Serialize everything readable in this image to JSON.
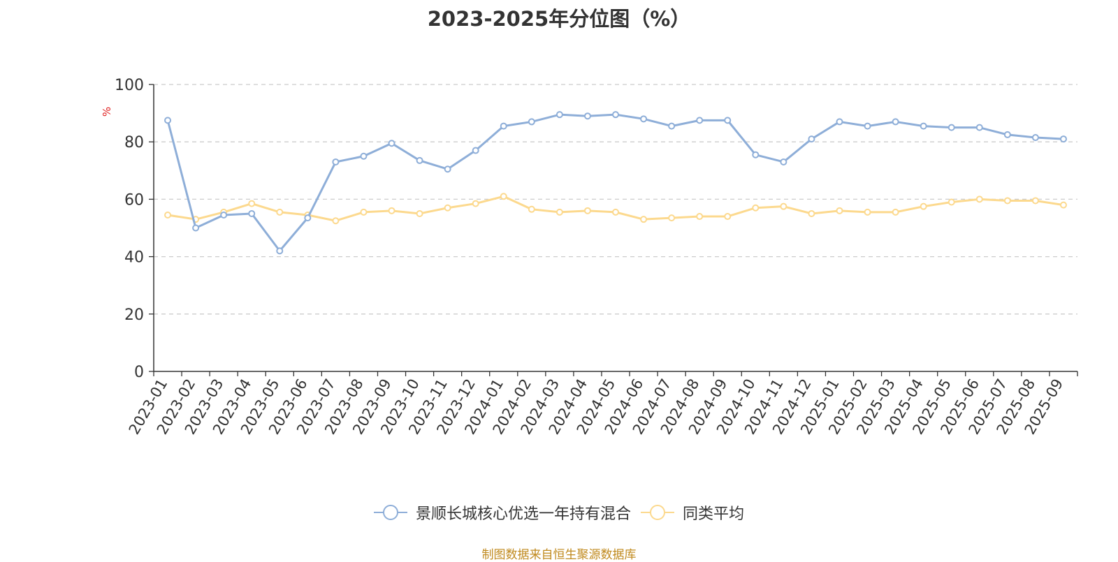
{
  "chart_data": {
    "type": "line",
    "title": "2023-2025年分位图（%）",
    "ylabel": "%",
    "xlabel": "",
    "ylim": [
      0,
      100
    ],
    "yticks": [
      0,
      20,
      40,
      60,
      80,
      100
    ],
    "grid": true,
    "legend_position": "bottom",
    "categories": [
      "2023-01",
      "2023-02",
      "2023-03",
      "2023-04",
      "2023-05",
      "2023-06",
      "2023-07",
      "2023-08",
      "2023-09",
      "2023-10",
      "2023-11",
      "2023-12",
      "2024-01",
      "2024-02",
      "2024-03",
      "2024-04",
      "2024-05",
      "2024-06",
      "2024-07",
      "2024-08",
      "2024-09",
      "2024-10",
      "2024-11",
      "2024-12",
      "2025-01",
      "2025-02",
      "2025-03",
      "2025-04",
      "2025-05",
      "2025-06",
      "2025-07",
      "2025-08",
      "2025-09"
    ],
    "series": [
      {
        "name": "景顺长城核心优选一年持有混合",
        "color": "#8eaed8",
        "values": [
          87.5,
          50,
          54.5,
          55,
          42,
          53.5,
          73,
          75,
          79.5,
          73.5,
          70.5,
          77,
          85.5,
          87,
          89.5,
          89,
          89.5,
          88,
          85.5,
          87.5,
          87.5,
          75.5,
          73,
          81,
          87,
          85.5,
          87,
          85.5,
          85,
          85,
          82.5,
          81.5,
          81
        ]
      },
      {
        "name": "同类平均",
        "color": "#fcd98e",
        "values": [
          54.5,
          53,
          55.5,
          58.5,
          55.5,
          54.5,
          52.5,
          55.5,
          56,
          55,
          57,
          58.5,
          61,
          56.5,
          55.5,
          56,
          55.5,
          53,
          53.5,
          54,
          54,
          57,
          57.5,
          55,
          56,
          55.5,
          55.5,
          57.5,
          59,
          60,
          59.5,
          59.5,
          58
        ]
      }
    ]
  },
  "footer": {
    "source": "制图数据来自恒生聚源数据库"
  }
}
